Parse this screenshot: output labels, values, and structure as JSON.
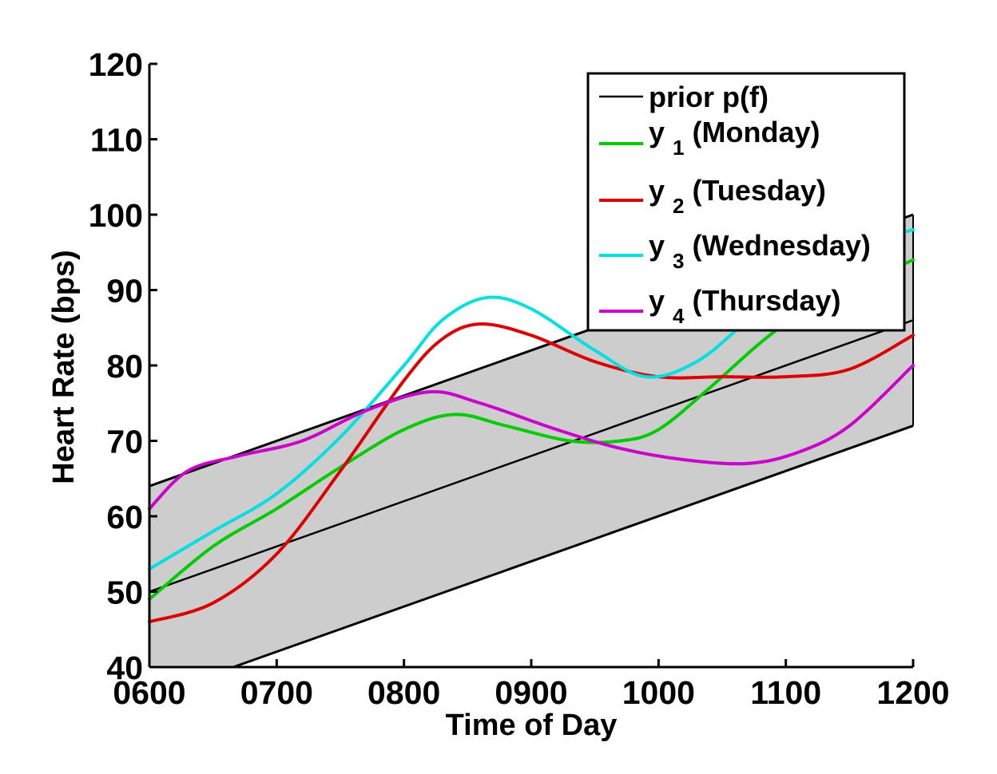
{
  "chart_data": {
    "type": "line",
    "title": "",
    "xlabel": "Time of Day",
    "ylabel": "Heart Rate (bps)",
    "xlim": [
      600,
      1200
    ],
    "ylim": [
      40,
      120
    ],
    "x_ticks": [
      "0600",
      "0700",
      "0800",
      "0900",
      "1000",
      "1100",
      "1200"
    ],
    "y_ticks": [
      "40",
      "50",
      "60",
      "70",
      "80",
      "90",
      "100",
      "110",
      "120"
    ],
    "grid": false,
    "legend_position": "top-right",
    "band": {
      "upper": [
        [
          600,
          64
        ],
        [
          1200,
          100
        ]
      ],
      "lower": [
        [
          666,
          40
        ],
        [
          1200,
          72
        ]
      ],
      "fill_color": "#cdcdcd",
      "edge_color": "#000000"
    },
    "series": [
      {
        "name": "prior p(f)",
        "legend_main": "prior p(f)",
        "legend_sub": "",
        "legend_rest": "",
        "color": "#000000",
        "width": 2.5,
        "points": [
          [
            600,
            50
          ],
          [
            1200,
            86
          ]
        ]
      },
      {
        "name": "y1 (Monday)",
        "legend_main": "y",
        "legend_sub": "1",
        "legend_rest": " (Monday)",
        "color": "#00cc00",
        "width": 4,
        "points": [
          [
            600,
            49
          ],
          [
            650,
            56
          ],
          [
            700,
            61
          ],
          [
            750,
            66.5
          ],
          [
            800,
            71.5
          ],
          [
            840,
            73.5
          ],
          [
            880,
            72
          ],
          [
            930,
            70
          ],
          [
            970,
            70
          ],
          [
            1000,
            71.5
          ],
          [
            1040,
            77
          ],
          [
            1080,
            83
          ],
          [
            1120,
            88
          ],
          [
            1160,
            91
          ],
          [
            1200,
            94
          ]
        ]
      },
      {
        "name": "y2 (Tuesday)",
        "legend_main": "y",
        "legend_sub": "2",
        "legend_rest": " (Tuesday)",
        "color": "#dd0000",
        "width": 4,
        "points": [
          [
            600,
            46
          ],
          [
            650,
            48.5
          ],
          [
            700,
            55
          ],
          [
            750,
            66
          ],
          [
            800,
            78
          ],
          [
            830,
            83.5
          ],
          [
            860,
            85.5
          ],
          [
            900,
            84
          ],
          [
            950,
            80.5
          ],
          [
            1000,
            78.5
          ],
          [
            1050,
            78.5
          ],
          [
            1100,
            78.5
          ],
          [
            1150,
            79.5
          ],
          [
            1200,
            84
          ]
        ]
      },
      {
        "name": "y3 (Wednesday)",
        "legend_main": "y",
        "legend_sub": "3",
        "legend_rest": " (Wednesday)",
        "color": "#00e0e0",
        "width": 4,
        "points": [
          [
            600,
            53
          ],
          [
            650,
            58
          ],
          [
            700,
            63
          ],
          [
            750,
            70.5
          ],
          [
            800,
            80
          ],
          [
            830,
            86
          ],
          [
            865,
            89
          ],
          [
            900,
            87.5
          ],
          [
            950,
            82
          ],
          [
            990,
            78.5
          ],
          [
            1030,
            80.5
          ],
          [
            1070,
            86
          ],
          [
            1110,
            91.5
          ],
          [
            1160,
            96
          ],
          [
            1200,
            98
          ]
        ]
      },
      {
        "name": "y4 (Thursday)",
        "legend_main": "y",
        "legend_sub": "4",
        "legend_rest": " (Thursday)",
        "color": "#cc00cc",
        "width": 4,
        "points": [
          [
            600,
            61
          ],
          [
            630,
            66
          ],
          [
            670,
            68
          ],
          [
            720,
            70
          ],
          [
            770,
            74
          ],
          [
            820,
            76.5
          ],
          [
            860,
            75
          ],
          [
            920,
            71.5
          ],
          [
            970,
            69
          ],
          [
            1020,
            67.5
          ],
          [
            1070,
            67
          ],
          [
            1110,
            68.5
          ],
          [
            1150,
            72
          ],
          [
            1200,
            80
          ]
        ]
      }
    ]
  }
}
